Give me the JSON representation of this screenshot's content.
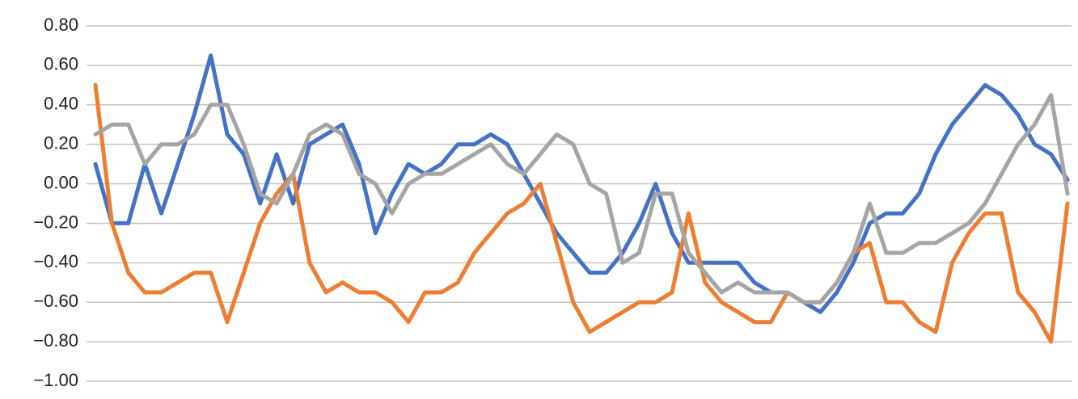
{
  "chart_data": {
    "type": "line",
    "ylim": [
      -1.0,
      0.8
    ],
    "yticks": [
      {
        "value": 0.8,
        "label": "0.80"
      },
      {
        "value": 0.6,
        "label": "0.60"
      },
      {
        "value": 0.4,
        "label": "0.40"
      },
      {
        "value": 0.2,
        "label": "0.20"
      },
      {
        "value": 0,
        "label": "0.00"
      },
      {
        "value": -0.2,
        "label": "−0.20"
      },
      {
        "value": -0.4,
        "label": "−0.40"
      },
      {
        "value": -0.6,
        "label": "−0.60"
      },
      {
        "value": -0.8,
        "label": "−0.80"
      },
      {
        "value": -1.0,
        "label": "−1.00"
      }
    ],
    "grid": true,
    "series": [
      {
        "color": "#4472c4",
        "values": [
          0.1,
          -0.2,
          -0.2,
          0.1,
          -0.15,
          0.1,
          0.35,
          0.65,
          0.25,
          0.15,
          -0.1,
          0.15,
          -0.1,
          0.2,
          0.25,
          0.3,
          0.1,
          -0.25,
          -0.05,
          0.1,
          0.05,
          0.1,
          0.2,
          0.2,
          0.25,
          0.2,
          0.05,
          -0.1,
          -0.25,
          -0.35,
          -0.45,
          -0.45,
          -0.35,
          -0.2,
          0.0,
          -0.25,
          -0.4,
          -0.4,
          -0.4,
          -0.4,
          -0.5,
          -0.55,
          -0.55,
          -0.6,
          -0.65,
          -0.55,
          -0.4,
          -0.2,
          -0.15,
          -0.15,
          -0.05,
          0.15,
          0.3,
          0.4,
          0.5,
          0.45,
          0.35,
          0.2,
          0.15,
          0.02
        ]
      },
      {
        "color": "#ed7d31",
        "values": [
          0.5,
          -0.2,
          -0.45,
          -0.55,
          -0.55,
          -0.5,
          -0.45,
          -0.45,
          -0.7,
          -0.45,
          -0.2,
          -0.05,
          0.05,
          -0.4,
          -0.55,
          -0.5,
          -0.55,
          -0.55,
          -0.6,
          -0.7,
          -0.55,
          -0.55,
          -0.5,
          -0.35,
          -0.25,
          -0.15,
          -0.1,
          0.0,
          -0.3,
          -0.6,
          -0.75,
          -0.7,
          -0.65,
          -0.6,
          -0.6,
          -0.55,
          -0.15,
          -0.5,
          -0.6,
          -0.65,
          -0.7,
          -0.7,
          -0.55,
          -0.6,
          -0.6,
          -0.5,
          -0.35,
          -0.3,
          -0.6,
          -0.6,
          -0.7,
          -0.75,
          -0.4,
          -0.25,
          -0.15,
          -0.15,
          -0.55,
          -0.65,
          -0.8,
          -0.1
        ]
      },
      {
        "color": "#a5a5a5",
        "values": [
          0.25,
          0.3,
          0.3,
          0.1,
          0.2,
          0.2,
          0.25,
          0.4,
          0.4,
          0.2,
          -0.05,
          -0.1,
          0.05,
          0.25,
          0.3,
          0.25,
          0.05,
          0.0,
          -0.15,
          0.0,
          0.05,
          0.05,
          0.1,
          0.15,
          0.2,
          0.1,
          0.05,
          0.15,
          0.25,
          0.2,
          0.0,
          -0.05,
          -0.4,
          -0.35,
          -0.05,
          -0.05,
          -0.35,
          -0.45,
          -0.55,
          -0.5,
          -0.55,
          -0.55,
          -0.55,
          -0.6,
          -0.6,
          -0.5,
          -0.35,
          -0.1,
          -0.35,
          -0.35,
          -0.3,
          -0.3,
          -0.25,
          -0.2,
          -0.1,
          0.05,
          0.2,
          0.3,
          0.45,
          -0.05
        ]
      }
    ]
  }
}
